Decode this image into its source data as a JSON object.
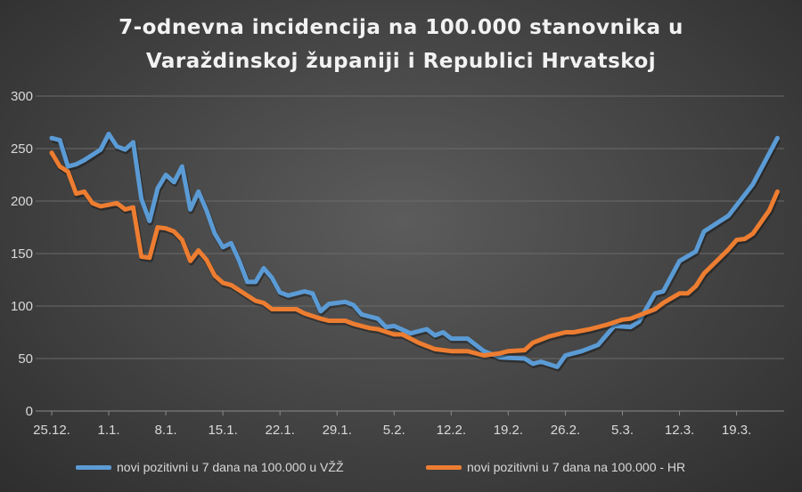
{
  "chart_data": {
    "type": "line",
    "title": "7-odnevna incidencija na 100.000 stanovnika u Varaždinskoj županiji i Republici Hrvatskoj",
    "title_lines": [
      "7-odnevna incidencija na 100.000 stanovnika u",
      "Varaždinskoj županiji i Republici Hrvatskoj"
    ],
    "xlabel": "",
    "ylabel": "",
    "ylim": [
      0,
      300
    ],
    "yticks": [
      "0",
      "50",
      "100",
      "150",
      "200",
      "250",
      "300"
    ],
    "xticks": [
      "25.12.",
      "1.1.",
      "8.1.",
      "15.1.",
      "22.1.",
      "29.1.",
      "5.2.",
      "12.2.",
      "19.2.",
      "26.2.",
      "5.3.",
      "12.3.",
      "19.3."
    ],
    "xrange": [
      "25.12.",
      "24.3."
    ],
    "grid": true,
    "legend_position": "bottom",
    "background": "#474747",
    "series": [
      {
        "name": "novi pozitivni u 7 dana na 100.000 u VŽŽ",
        "color": "#5b9bd5",
        "points": [
          [
            "25.12.",
            260
          ],
          [
            "26.12.",
            258
          ],
          [
            "27.12.",
            233
          ],
          [
            "28.12.",
            235
          ],
          [
            "29.12.",
            239
          ],
          [
            "31.12.",
            249
          ],
          [
            "1.1.",
            264
          ],
          [
            "2.1.",
            252
          ],
          [
            "3.1.",
            249
          ],
          [
            "4.1.",
            256
          ],
          [
            "5.1.",
            202
          ],
          [
            "6.1.",
            181
          ],
          [
            "7.1.",
            212
          ],
          [
            "8.1.",
            225
          ],
          [
            "9.1.",
            218
          ],
          [
            "10.1.",
            233
          ],
          [
            "11.1.",
            192
          ],
          [
            "12.1.",
            209
          ],
          [
            "13.1.",
            191
          ],
          [
            "14.1.",
            169
          ],
          [
            "15.1.",
            156
          ],
          [
            "16.1.",
            160
          ],
          [
            "17.1.",
            143
          ],
          [
            "18.1.",
            123
          ],
          [
            "19.1.",
            123
          ],
          [
            "20.1.",
            136
          ],
          [
            "21.1.",
            127
          ],
          [
            "22.1.",
            113
          ],
          [
            "23.1.",
            110
          ],
          [
            "25.1.",
            114
          ],
          [
            "26.1.",
            112
          ],
          [
            "27.1.",
            95
          ],
          [
            "28.1.",
            102
          ],
          [
            "30.1.",
            104
          ],
          [
            "31.1.",
            101
          ],
          [
            "1.2.",
            92
          ],
          [
            "3.2.",
            88
          ],
          [
            "4.2.",
            80
          ],
          [
            "5.2.",
            81
          ],
          [
            "7.2.",
            74
          ],
          [
            "9.2.",
            78
          ],
          [
            "10.2.",
            72
          ],
          [
            "11.2.",
            75
          ],
          [
            "12.2.",
            69
          ],
          [
            "14.2.",
            69
          ],
          [
            "16.2.",
            57
          ],
          [
            "18.2.",
            51
          ],
          [
            "21.2.",
            50
          ],
          [
            "22.2.",
            45
          ],
          [
            "23.2.",
            47
          ],
          [
            "25.2.",
            42
          ],
          [
            "26.2.",
            53
          ],
          [
            "28.2.",
            57
          ],
          [
            "2.3.",
            63
          ],
          [
            "4.3.",
            81
          ],
          [
            "6.3.",
            80
          ],
          [
            "7.3.",
            85
          ],
          [
            "9.3.",
            112
          ],
          [
            "10.3.",
            114
          ],
          [
            "12.3.",
            143
          ],
          [
            "14.3.",
            152
          ],
          [
            "15.3.",
            171
          ],
          [
            "17.3.",
            181
          ],
          [
            "18.3.",
            186
          ],
          [
            "21.3.",
            216
          ],
          [
            "24.3.",
            260
          ]
        ]
      },
      {
        "name": "novi pozitivni u 7 dana na 100.000 - HR",
        "color": "#ed7d31",
        "points": [
          [
            "25.12.",
            246
          ],
          [
            "26.12.",
            233
          ],
          [
            "27.12.",
            228
          ],
          [
            "28.12.",
            207
          ],
          [
            "29.12.",
            209
          ],
          [
            "30.12.",
            198
          ],
          [
            "31.12.",
            195
          ],
          [
            "2.1.",
            198
          ],
          [
            "3.1.",
            192
          ],
          [
            "4.1.",
            194
          ],
          [
            "5.1.",
            147
          ],
          [
            "6.1.",
            146
          ],
          [
            "7.1.",
            175
          ],
          [
            "8.1.",
            174
          ],
          [
            "9.1.",
            171
          ],
          [
            "10.1.",
            163
          ],
          [
            "11.1.",
            143
          ],
          [
            "12.1.",
            153
          ],
          [
            "13.1.",
            144
          ],
          [
            "14.1.",
            129
          ],
          [
            "15.1.",
            122
          ],
          [
            "16.1.",
            120
          ],
          [
            "18.1.",
            110
          ],
          [
            "19.1.",
            105
          ],
          [
            "20.1.",
            103
          ],
          [
            "21.1.",
            97
          ],
          [
            "22.1.",
            97
          ],
          [
            "24.1.",
            97
          ],
          [
            "25.1.",
            93
          ],
          [
            "27.1.",
            88
          ],
          [
            "28.1.",
            86
          ],
          [
            "30.1.",
            86
          ],
          [
            "31.1.",
            83
          ],
          [
            "2.2.",
            79
          ],
          [
            "3.2.",
            78
          ],
          [
            "5.2.",
            73
          ],
          [
            "6.2.",
            73
          ],
          [
            "8.2.",
            65
          ],
          [
            "10.2.",
            59
          ],
          [
            "12.2.",
            57
          ],
          [
            "14.2.",
            57
          ],
          [
            "16.2.",
            53
          ],
          [
            "18.2.",
            55
          ],
          [
            "19.2.",
            57
          ],
          [
            "21.2.",
            58
          ],
          [
            "22.2.",
            65
          ],
          [
            "24.2.",
            71
          ],
          [
            "26.2.",
            75
          ],
          [
            "27.2.",
            75
          ],
          [
            "1.3.",
            78
          ],
          [
            "3.3.",
            82
          ],
          [
            "5.3.",
            87
          ],
          [
            "6.3.",
            88
          ],
          [
            "7.3.",
            91
          ],
          [
            "9.3.",
            97
          ],
          [
            "10.3.",
            103
          ],
          [
            "12.3.",
            112
          ],
          [
            "13.3.",
            112
          ],
          [
            "14.3.",
            119
          ],
          [
            "15.3.",
            131
          ],
          [
            "18.3.",
            154
          ],
          [
            "19.3.",
            163
          ],
          [
            "20.3.",
            164
          ],
          [
            "21.3.",
            169
          ],
          [
            "23.3.",
            191
          ],
          [
            "24.3.",
            209
          ]
        ]
      }
    ]
  }
}
